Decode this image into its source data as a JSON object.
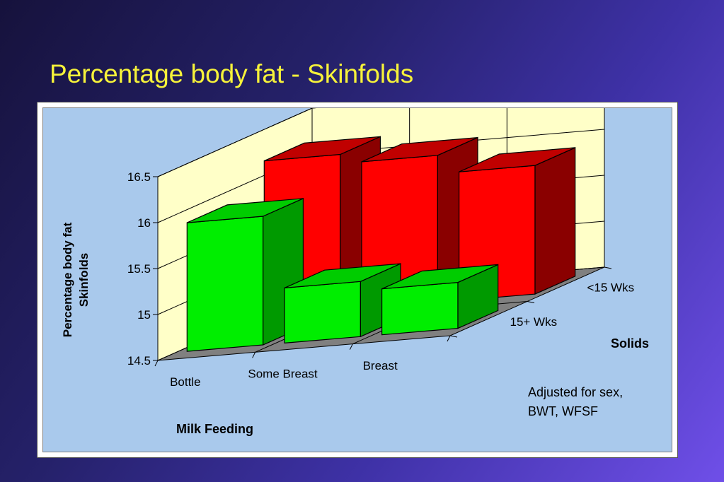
{
  "slide": {
    "title": "Percentage body fat - Skinfolds"
  },
  "chart_data": {
    "type": "bar",
    "title": "",
    "ylabel_line1": "Percentage body fat",
    "ylabel_line2": "Skinfolds",
    "xlabel": "Milk Feeding",
    "zlabel": "Solids",
    "note_line1": "Adjusted for sex,",
    "note_line2": "BWT, WFSF",
    "categories": [
      "Bottle",
      "Some Breast",
      "Breast"
    ],
    "series_labels": [
      "<15 Wks",
      "15+ Wks"
    ],
    "series": [
      {
        "name": "<15 Wks",
        "values": [
          16.2,
          16.1,
          15.9
        ]
      },
      {
        "name": "15+ Wks",
        "values": [
          15.9,
          15.1,
          15.0
        ]
      }
    ],
    "ylim": [
      14.5,
      16.5
    ],
    "yticks": [
      "16.5",
      "16",
      "15.5",
      "15",
      "14.5"
    ],
    "yticks_values": [
      16.5,
      16,
      15.5,
      15,
      14.5
    ],
    "colors": {
      "back_series_front": "#ff0000",
      "back_series_side": "#8a0000",
      "back_series_top": "#c00000",
      "front_series_front": "#00ee00",
      "front_series_side": "#009a00",
      "front_series_top": "#00cc00",
      "wall": "#ffffc8",
      "floor": "#808080"
    }
  }
}
